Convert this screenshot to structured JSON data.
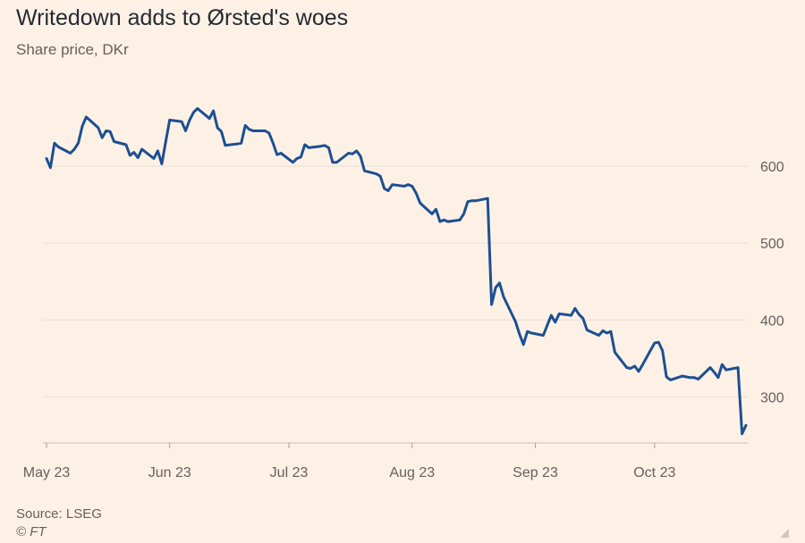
{
  "chart_data": {
    "type": "line",
    "title": "Writedown adds to Ørsted's woes",
    "subtitle": "Share price, DKr",
    "source": "Source: LSEG",
    "credit": "© FT",
    "xlabel": "",
    "ylabel": "",
    "ylim": [
      240,
      700
    ],
    "y_ticks": [
      300,
      400,
      500,
      600
    ],
    "y_axis_position": "right",
    "grid": "horizontal",
    "line_color": "#1d4f91",
    "x_ticks": [
      {
        "label": "May 23",
        "date": "2023-05-23"
      },
      {
        "label": "Jun 23",
        "date": "2023-06-23"
      },
      {
        "label": "Jul 23",
        "date": "2023-07-23"
      },
      {
        "label": "Aug 23",
        "date": "2023-08-23"
      },
      {
        "label": "Sep 23",
        "date": "2023-09-23"
      },
      {
        "label": "Oct 23",
        "date": "2023-10-23"
      }
    ],
    "series": [
      {
        "name": "",
        "points": [
          [
            "2023-05-23",
            610
          ],
          [
            "2023-05-24",
            598
          ],
          [
            "2023-05-25",
            630
          ],
          [
            "2023-05-26",
            625
          ],
          [
            "2023-05-29",
            617
          ],
          [
            "2023-05-30",
            622
          ],
          [
            "2023-05-31",
            630
          ],
          [
            "2023-06-01",
            652
          ],
          [
            "2023-06-02",
            664
          ],
          [
            "2023-06-05",
            650
          ],
          [
            "2023-06-06",
            637
          ],
          [
            "2023-06-07",
            646
          ],
          [
            "2023-06-08",
            645
          ],
          [
            "2023-06-09",
            632
          ],
          [
            "2023-06-12",
            628
          ],
          [
            "2023-06-13",
            614
          ],
          [
            "2023-06-14",
            618
          ],
          [
            "2023-06-15",
            611
          ],
          [
            "2023-06-16",
            622
          ],
          [
            "2023-06-19",
            610
          ],
          [
            "2023-06-20",
            620
          ],
          [
            "2023-06-21",
            603
          ],
          [
            "2023-06-22",
            632
          ],
          [
            "2023-06-23",
            660
          ],
          [
            "2023-06-26",
            658
          ],
          [
            "2023-06-27",
            646
          ],
          [
            "2023-06-28",
            660
          ],
          [
            "2023-06-29",
            670
          ],
          [
            "2023-06-30",
            675
          ],
          [
            "2023-07-03",
            662
          ],
          [
            "2023-07-04",
            672
          ],
          [
            "2023-07-05",
            650
          ],
          [
            "2023-07-06",
            645
          ],
          [
            "2023-07-07",
            627
          ],
          [
            "2023-07-10",
            629
          ],
          [
            "2023-07-11",
            630
          ],
          [
            "2023-07-12",
            653
          ],
          [
            "2023-07-13",
            648
          ],
          [
            "2023-07-14",
            646
          ],
          [
            "2023-07-17",
            646
          ],
          [
            "2023-07-18",
            643
          ],
          [
            "2023-07-19",
            630
          ],
          [
            "2023-07-20",
            615
          ],
          [
            "2023-07-21",
            617
          ],
          [
            "2023-07-24",
            605
          ],
          [
            "2023-07-25",
            610
          ],
          [
            "2023-07-26",
            612
          ],
          [
            "2023-07-27",
            628
          ],
          [
            "2023-07-28",
            624
          ],
          [
            "2023-07-31",
            626
          ],
          [
            "2023-08-01",
            627
          ],
          [
            "2023-08-02",
            624
          ],
          [
            "2023-08-03",
            605
          ],
          [
            "2023-08-04",
            605
          ],
          [
            "2023-08-07",
            617
          ],
          [
            "2023-08-08",
            616
          ],
          [
            "2023-08-09",
            620
          ],
          [
            "2023-08-10",
            613
          ],
          [
            "2023-08-11",
            594
          ],
          [
            "2023-08-14",
            590
          ],
          [
            "2023-08-15",
            587
          ],
          [
            "2023-08-16",
            571
          ],
          [
            "2023-08-17",
            568
          ],
          [
            "2023-08-18",
            576
          ],
          [
            "2023-08-21",
            574
          ],
          [
            "2023-08-22",
            576
          ],
          [
            "2023-08-23",
            574
          ],
          [
            "2023-08-24",
            565
          ],
          [
            "2023-08-25",
            552
          ],
          [
            "2023-08-28",
            538
          ],
          [
            "2023-08-29",
            544
          ],
          [
            "2023-08-30",
            528
          ],
          [
            "2023-08-31",
            530
          ],
          [
            "2023-09-01",
            528
          ],
          [
            "2023-09-04",
            530
          ],
          [
            "2023-09-05",
            538
          ],
          [
            "2023-09-06",
            554
          ],
          [
            "2023-09-07",
            555
          ],
          [
            "2023-09-08",
            555
          ],
          [
            "2023-09-11",
            558
          ],
          [
            "2023-09-12",
            420
          ],
          [
            "2023-09-13",
            442
          ],
          [
            "2023-09-14",
            448
          ],
          [
            "2023-09-15",
            430
          ],
          [
            "2023-09-18",
            398
          ],
          [
            "2023-09-19",
            382
          ],
          [
            "2023-09-20",
            368
          ],
          [
            "2023-09-21",
            385
          ],
          [
            "2023-09-22",
            383
          ],
          [
            "2023-09-25",
            380
          ],
          [
            "2023-09-26",
            393
          ],
          [
            "2023-09-27",
            406
          ],
          [
            "2023-09-28",
            397
          ],
          [
            "2023-09-29",
            408
          ],
          [
            "2023-10-02",
            406
          ],
          [
            "2023-10-03",
            415
          ],
          [
            "2023-10-04",
            407
          ],
          [
            "2023-10-05",
            402
          ],
          [
            "2023-10-06",
            387
          ],
          [
            "2023-10-09",
            380
          ],
          [
            "2023-10-10",
            386
          ],
          [
            "2023-10-11",
            383
          ],
          [
            "2023-10-12",
            385
          ],
          [
            "2023-10-13",
            358
          ],
          [
            "2023-10-16",
            338
          ],
          [
            "2023-10-17",
            337
          ],
          [
            "2023-10-18",
            340
          ],
          [
            "2023-10-19",
            333
          ],
          [
            "2023-10-20",
            342
          ],
          [
            "2023-10-23",
            370
          ],
          [
            "2023-10-24",
            371
          ],
          [
            "2023-10-25",
            360
          ],
          [
            "2023-10-26",
            326
          ],
          [
            "2023-10-27",
            322
          ],
          [
            "2023-10-30",
            327
          ],
          [
            "2023-10-31",
            326
          ],
          [
            "2023-11-01",
            325
          ],
          [
            "2023-11-02",
            325
          ],
          [
            "2023-11-03",
            323
          ],
          [
            "2023-11-06",
            338
          ],
          [
            "2023-11-07",
            332
          ],
          [
            "2023-11-08",
            325
          ],
          [
            "2023-11-09",
            342
          ],
          [
            "2023-11-10",
            335
          ],
          [
            "2023-11-13",
            338
          ],
          [
            "2023-11-14",
            252
          ],
          [
            "2023-11-15",
            263
          ]
        ]
      }
    ]
  }
}
